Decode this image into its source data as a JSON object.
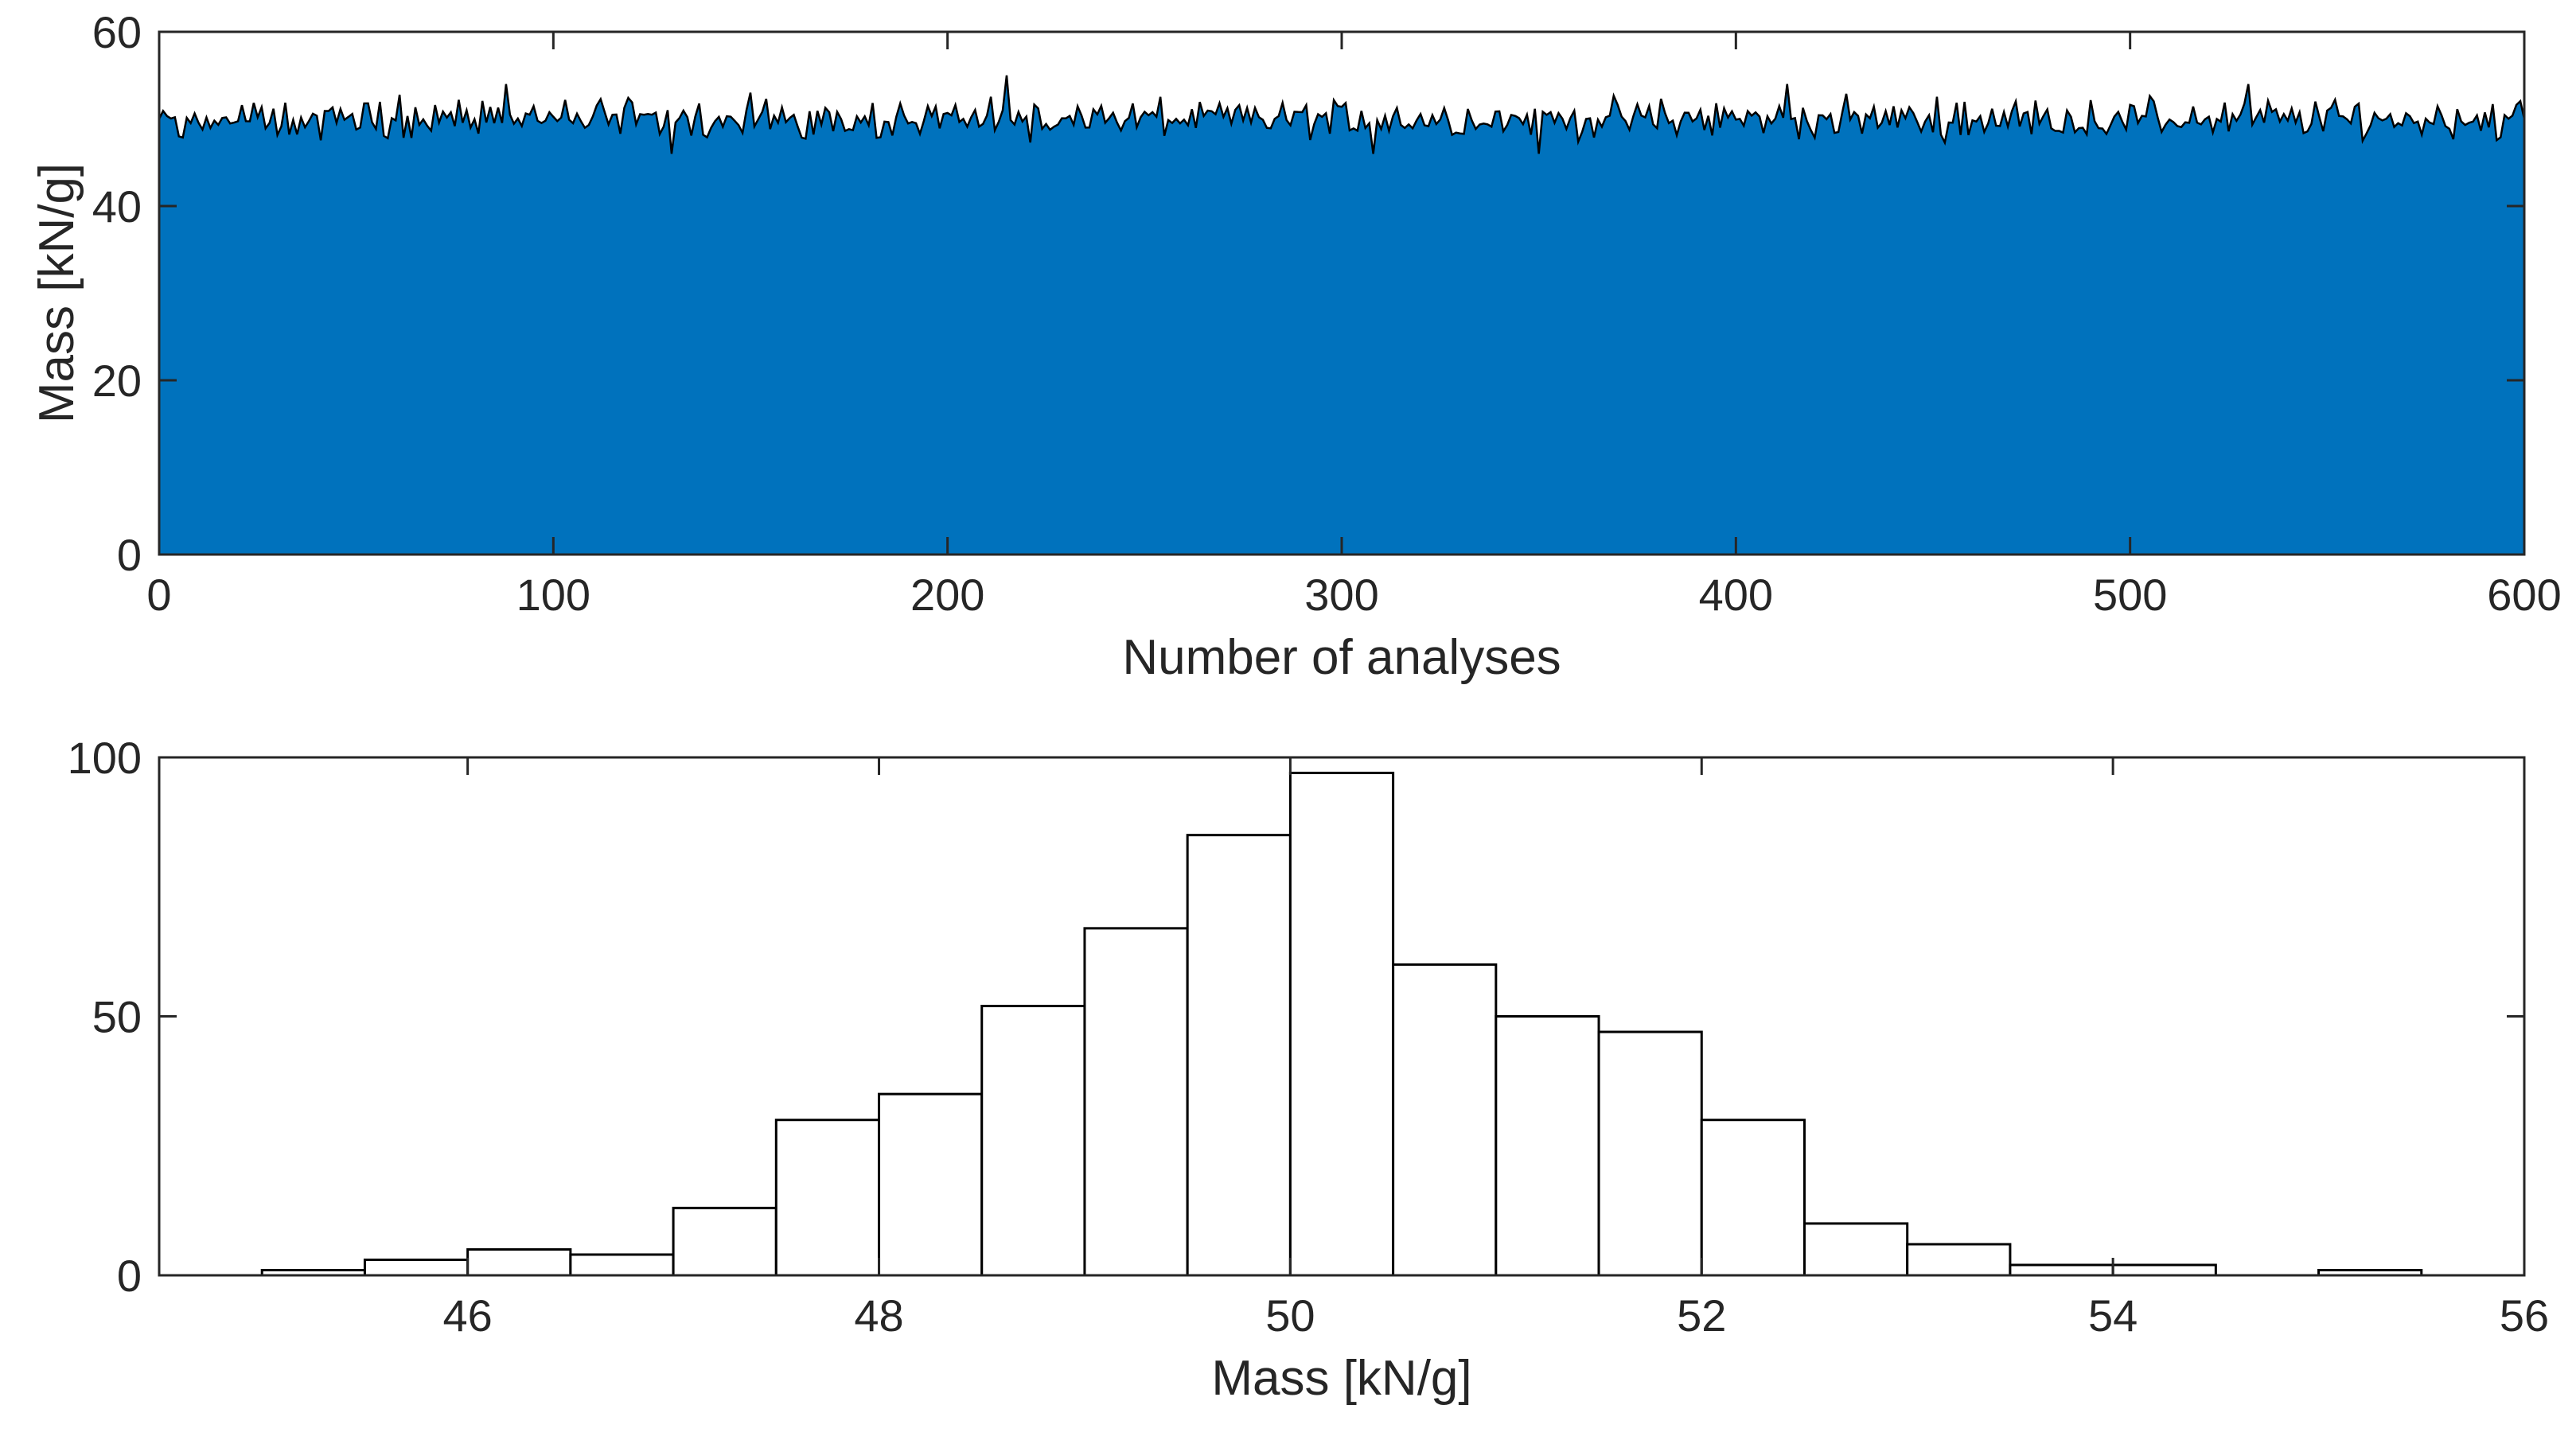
{
  "chart_data": [
    {
      "type": "area",
      "xlabel": "Number of analyses",
      "ylabel": "Mass [kN/g]",
      "xlim": [
        0,
        600
      ],
      "ylim": [
        0,
        60
      ],
      "xticks": [
        0,
        100,
        200,
        300,
        400,
        500,
        600
      ],
      "yticks": [
        0,
        20,
        40,
        60
      ],
      "grid": false,
      "fill_color": "#0072BD",
      "line_color": "#000000",
      "approximate_level": 50,
      "approximate_range": [
        45.5,
        55
      ],
      "notable_points": [
        {
          "x": 0,
          "y": 50
        },
        {
          "x": 5,
          "y": 48
        },
        {
          "x": 88,
          "y": 54
        },
        {
          "x": 130,
          "y": 46
        },
        {
          "x": 215,
          "y": 55
        },
        {
          "x": 308,
          "y": 46
        },
        {
          "x": 350,
          "y": 46
        },
        {
          "x": 413,
          "y": 54
        },
        {
          "x": 530,
          "y": 54
        },
        {
          "x": 600,
          "y": 50
        }
      ]
    },
    {
      "type": "bar",
      "subtype": "histogram",
      "xlabel": "Mass [kN/g]",
      "ylabel": "",
      "xlim": [
        44.5,
        56
      ],
      "ylim": [
        0,
        100
      ],
      "xticks": [
        46,
        48,
        50,
        52,
        54,
        56
      ],
      "yticks": [
        0,
        50,
        100
      ],
      "grid": false,
      "bar_fill": "#ffffff",
      "bar_edge": "#000000",
      "bin_width": 0.5,
      "bins": [
        45.0,
        45.5,
        46.0,
        46.5,
        47.0,
        47.5,
        48.0,
        48.5,
        49.0,
        49.5,
        50.0,
        50.5,
        51.0,
        51.5,
        52.0,
        52.5,
        53.0,
        53.5,
        54.0,
        54.5,
        55.0
      ],
      "values": [
        1,
        3,
        5,
        4,
        13,
        30,
        35,
        52,
        67,
        85,
        97,
        60,
        50,
        47,
        30,
        10,
        6,
        2,
        2,
        0,
        1
      ]
    }
  ]
}
